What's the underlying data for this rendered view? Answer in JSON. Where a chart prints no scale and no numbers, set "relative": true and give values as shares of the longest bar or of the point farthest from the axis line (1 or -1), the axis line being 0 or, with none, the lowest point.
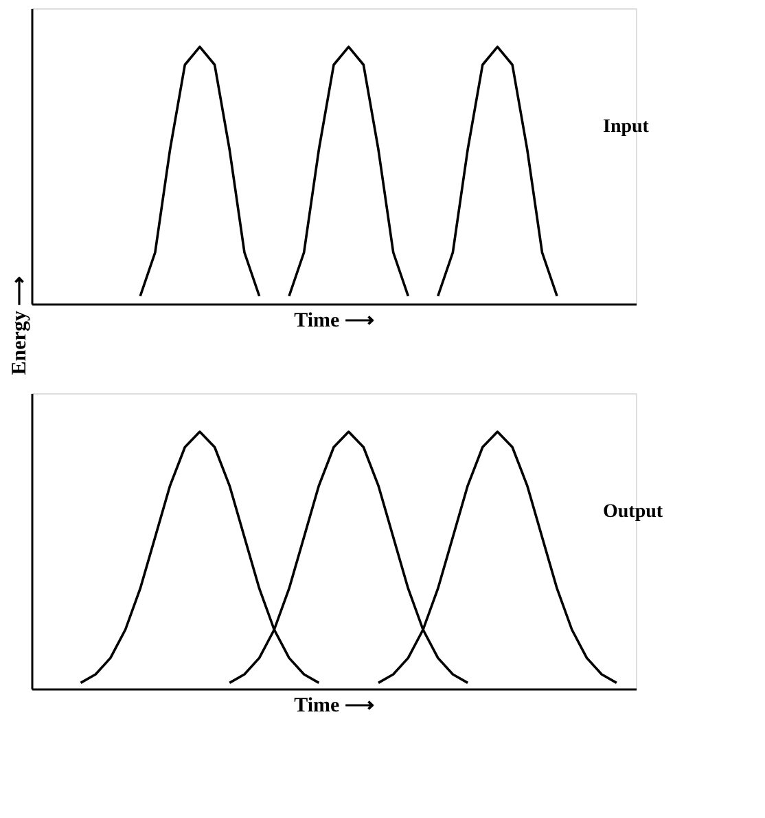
{
  "chart_data": [
    {
      "type": "line",
      "relative": true,
      "xlabel": "Time ⟶",
      "ylabel": "Energy ⟶",
      "annotations": [
        "Input"
      ],
      "grid": false,
      "tick_labels": false,
      "marker": "none",
      "line_style": "solid",
      "categories": [
        null,
        null,
        null,
        null,
        null,
        null,
        null,
        null,
        null,
        null,
        null,
        null,
        null,
        null,
        null,
        null,
        null,
        null,
        null,
        null,
        null,
        null,
        null,
        null,
        null,
        null,
        null,
        null,
        null,
        null,
        null,
        null,
        null,
        null,
        null,
        null,
        null,
        null,
        null,
        null,
        null
      ],
      "series": [
        {
          "color": "#000000",
          "values": [
            null,
            null,
            null,
            null,
            null,
            null,
            null,
            0.03,
            0.2,
            0.6,
            0.93,
            1,
            0.93,
            0.6,
            0.2,
            0.03,
            null,
            null,
            null,
            null,
            null,
            null,
            null,
            null,
            null,
            null,
            null,
            null,
            null,
            null,
            null,
            null,
            null,
            null,
            null,
            null,
            null,
            null,
            null,
            null,
            null
          ]
        },
        {
          "color": "#000000",
          "values": [
            null,
            null,
            null,
            null,
            null,
            null,
            null,
            null,
            null,
            null,
            null,
            null,
            null,
            null,
            null,
            null,
            null,
            0.03,
            0.2,
            0.6,
            0.93,
            1,
            0.93,
            0.6,
            0.2,
            0.03,
            null,
            null,
            null,
            null,
            null,
            null,
            null,
            null,
            null,
            null,
            null,
            null,
            null,
            null,
            null
          ]
        },
        {
          "color": "#000000",
          "values": [
            null,
            null,
            null,
            null,
            null,
            null,
            null,
            null,
            null,
            null,
            null,
            null,
            null,
            null,
            null,
            null,
            null,
            null,
            null,
            null,
            null,
            null,
            null,
            null,
            null,
            null,
            null,
            0.03,
            0.2,
            0.6,
            0.93,
            1,
            0.93,
            0.6,
            0.2,
            0.03,
            null,
            null,
            null,
            null,
            null
          ]
        }
      ]
    },
    {
      "type": "line",
      "relative": true,
      "xlabel": "Time ⟶",
      "annotations": [
        "Output"
      ],
      "grid": false,
      "tick_labels": false,
      "marker": "none",
      "line_style": "solid",
      "categories": [
        null,
        null,
        null,
        null,
        null,
        null,
        null,
        null,
        null,
        null,
        null,
        null,
        null,
        null,
        null,
        null,
        null,
        null,
        null,
        null,
        null,
        null,
        null,
        null,
        null,
        null,
        null,
        null,
        null,
        null,
        null,
        null,
        null,
        null,
        null,
        null,
        null,
        null,
        null,
        null,
        null
      ],
      "series": [
        {
          "color": "#000000",
          "values": [
            null,
            null,
            null,
            0.023,
            0.056,
            0.12,
            0.23,
            0.39,
            0.59,
            0.79,
            0.94,
            1,
            0.94,
            0.79,
            0.59,
            0.39,
            0.23,
            0.12,
            0.056,
            0.023,
            null,
            null,
            null,
            null,
            null,
            null,
            null,
            null,
            null,
            null,
            null,
            null,
            null,
            null,
            null,
            null,
            null,
            null,
            null,
            null,
            null
          ]
        },
        {
          "color": "#000000",
          "values": [
            null,
            null,
            null,
            null,
            null,
            null,
            null,
            null,
            null,
            null,
            null,
            null,
            null,
            0.023,
            0.056,
            0.12,
            0.23,
            0.39,
            0.59,
            0.79,
            0.94,
            1,
            0.94,
            0.79,
            0.59,
            0.39,
            0.23,
            0.12,
            0.056,
            0.023,
            null,
            null,
            null,
            null,
            null,
            null,
            null,
            null,
            null,
            null,
            null
          ]
        },
        {
          "color": "#000000",
          "values": [
            null,
            null,
            null,
            null,
            null,
            null,
            null,
            null,
            null,
            null,
            null,
            null,
            null,
            null,
            null,
            null,
            null,
            null,
            null,
            null,
            null,
            null,
            null,
            0.023,
            0.056,
            0.12,
            0.23,
            0.39,
            0.59,
            0.79,
            0.94,
            1,
            0.94,
            0.79,
            0.59,
            0.39,
            0.23,
            0.12,
            0.056,
            0.023,
            null
          ]
        }
      ]
    }
  ]
}
